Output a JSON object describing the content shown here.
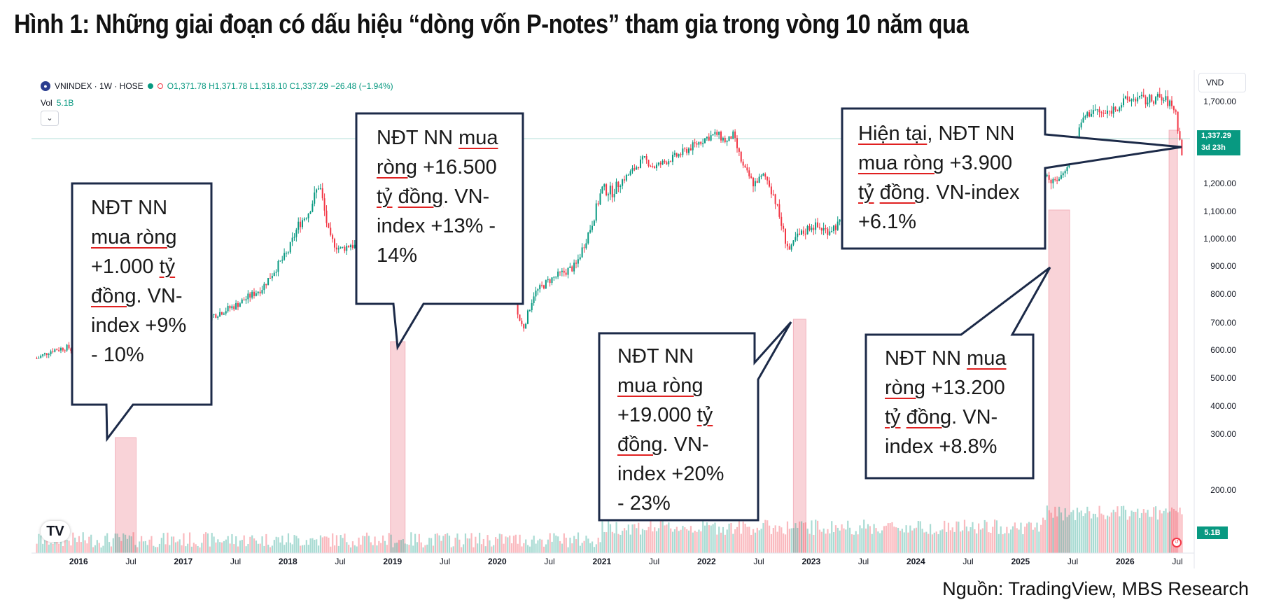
{
  "figure_title": "Hình 1: Những giai đoạn có dấu hiệu “dòng vốn P-notes” tham gia trong vòng 10 năm qua",
  "source": "Nguồn: TradingView, MBS Research",
  "legend": {
    "symbol": "VNINDEX · 1W · HOSE",
    "ohlc": "O1,371.78  H1,371.78  L1,318.10  C1,337.29  −26.48 (−1.94%)",
    "vol_label": "Vol",
    "vol_value": "5.1B",
    "collapse_icon": "chevron-down-icon"
  },
  "currency_label": "VND",
  "price_tag": {
    "price": "1,337.29",
    "countdown": "3d 23h"
  },
  "vol_tag": "5.1B",
  "tv_logo": "TV",
  "colors": {
    "up": "#089981",
    "down": "#f23645",
    "highlight": "#f7c5cc",
    "callout_border": "#1c2a48"
  },
  "callouts": [
    {
      "id": "c1",
      "text": "NĐT NN\nmua ròng\n+1.000 tỷ\nđồng. VN-\nindex +9%\n- 10%"
    },
    {
      "id": "c2",
      "text": "NĐT NN mua\nròng +16.500\ntỷ đồng. VN-\nindex +13% -\n14%"
    },
    {
      "id": "c3",
      "text": "NĐT NN\nmua ròng\n+19.000 tỷ\nđồng. VN-\nindex +20%\n- 23%"
    },
    {
      "id": "c4",
      "text": "NĐT NN mua\nròng +13.200\ntỷ đồng. VN-\nindex +8.8%"
    },
    {
      "id": "c5",
      "text": "Hiện tại, NĐT NN\nmua ròng +3.900\ntỷ đồng. VN-index\n+6.1%"
    }
  ],
  "chart_data": {
    "type": "line",
    "symbol": "VNINDEX",
    "interval": "1W",
    "ylim": [
      100,
      1850
    ],
    "y_ticks": [
      200,
      300,
      400,
      500,
      600,
      700,
      800,
      900,
      1000,
      1100,
      1200,
      1700
    ],
    "x_ticks": [
      "2016",
      "Jul",
      "2017",
      "Jul",
      "2018",
      "Jul",
      "2019",
      "Jul",
      "2020",
      "Jul",
      "2021",
      "Jul",
      "2022",
      "Jul",
      "2023",
      "Jul",
      "2024",
      "Jul",
      "2025",
      "Jul",
      "2026",
      "Jul"
    ],
    "x_tick_dates": [
      2016.0,
      2016.5,
      2017.0,
      2017.5,
      2018.0,
      2018.5,
      2019.0,
      2019.5,
      2020.0,
      2020.5,
      2021.0,
      2021.5,
      2022.0,
      2022.5,
      2023.0,
      2023.5,
      2024.0,
      2024.5,
      2025.0,
      2025.5,
      2026.0,
      2026.5
    ],
    "x_range": [
      2015.55,
      2026.62
    ],
    "series": [
      {
        "x": [
          2015.6,
          2015.75,
          2015.9,
          2016.0,
          2016.1,
          2016.25,
          2016.4,
          2016.5,
          2016.6,
          2016.75,
          2016.9,
          2017.0,
          2017.25,
          2017.5,
          2017.75,
          2017.9,
          2018.0,
          2018.1,
          2018.2,
          2018.3,
          2018.4,
          2018.5,
          2018.6,
          2018.75,
          2018.9,
          2019.0,
          2019.1,
          2019.25,
          2019.5,
          2019.75,
          2019.9,
          2020.0,
          2020.1,
          2020.2,
          2020.25,
          2020.35,
          2020.5,
          2020.75,
          2020.9,
          2021.0,
          2021.1,
          2021.25,
          2021.4,
          2021.5,
          2021.6,
          2021.75,
          2021.9,
          2022.0,
          2022.1,
          2022.2,
          2022.25,
          2022.35,
          2022.45,
          2022.55,
          2022.65,
          2022.75,
          2022.8,
          2022.85,
          2022.95,
          2023.0,
          2023.15,
          2023.3,
          2023.45,
          2023.6,
          2023.7,
          2023.8,
          2023.9,
          2024.0,
          2024.2,
          2024.4,
          2024.6,
          2024.8,
          2025.0,
          2025.1,
          2025.2,
          2025.3,
          2025.4,
          2025.5,
          2025.6,
          2025.7,
          2025.8,
          2025.9,
          2026.0,
          2026.1,
          2026.2,
          2026.3,
          2026.4,
          2026.48,
          2026.55
        ],
        "values": [
          570,
          600,
          610,
          580,
          560,
          590,
          620,
          640,
          660,
          670,
          680,
          690,
          720,
          760,
          820,
          900,
          950,
          1050,
          1100,
          1200,
          1000,
          960,
          980,
          950,
          900,
          890,
          960,
          980,
          970,
          980,
          960,
          960,
          940,
          720,
          680,
          800,
          850,
          900,
          1050,
          1180,
          1170,
          1250,
          1350,
          1300,
          1330,
          1380,
          1440,
          1480,
          1500,
          1450,
          1500,
          1300,
          1200,
          1250,
          1150,
          1000,
          950,
          1000,
          1030,
          1050,
          1030,
          1060,
          1120,
          1180,
          1220,
          1090,
          1120,
          1150,
          1250,
          1270,
          1280,
          1240,
          1260,
          1270,
          1310,
          1200,
          1250,
          1400,
          1600,
          1650,
          1620,
          1660,
          1700,
          1720,
          1700,
          1720,
          1700,
          1650,
          1337
        ]
      }
    ],
    "volume_note": "weekly volume histogram",
    "highlights": [
      {
        "from": 2016.35,
        "to": 2016.55
      },
      {
        "from": 2018.98,
        "to": 2019.12
      },
      {
        "from": 2022.83,
        "to": 2022.95
      },
      {
        "from": 2025.27,
        "to": 2025.47
      },
      {
        "from": 2026.42,
        "to": 2026.5
      }
    ]
  }
}
